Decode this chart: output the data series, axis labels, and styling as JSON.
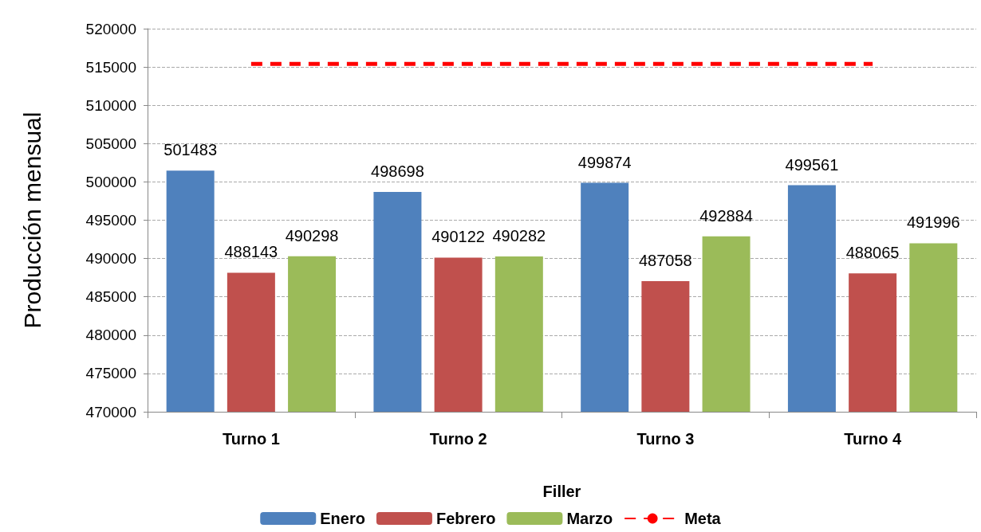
{
  "chart_data": {
    "type": "bar",
    "xlabel": "Filler",
    "ylabel": "Producción mensual",
    "categories": [
      "Turno 1",
      "Turno 2",
      "Turno 3",
      "Turno 4"
    ],
    "series": [
      {
        "name": "Enero",
        "color": "#4f81bd",
        "values": [
          501483,
          498698,
          499874,
          499561
        ],
        "value_labels": [
          "501483",
          "498698",
          "499874",
          "499561"
        ]
      },
      {
        "name": "Febrero",
        "color": "#c0504d",
        "values": [
          488143,
          490122,
          487058,
          488065
        ],
        "value_labels": [
          "488143",
          "490122",
          "487058",
          "488065"
        ]
      },
      {
        "name": "Marzo",
        "color": "#9bbb59",
        "values": [
          490298,
          490282,
          492884,
          491996
        ],
        "value_labels": [
          "490298",
          "490282",
          "492884",
          "491996"
        ]
      },
      {
        "name": "Meta",
        "type": "line",
        "color": "#ff0000",
        "line_style": "dashed",
        "marker": "none",
        "values": [
          515400,
          515400,
          515400,
          515400
        ]
      }
    ],
    "ylim": [
      470000,
      520000
    ],
    "yticks": [
      470000,
      475000,
      480000,
      485000,
      490000,
      495000,
      500000,
      505000,
      510000,
      515000,
      520000
    ],
    "grid": "y",
    "legend": "bottom"
  }
}
